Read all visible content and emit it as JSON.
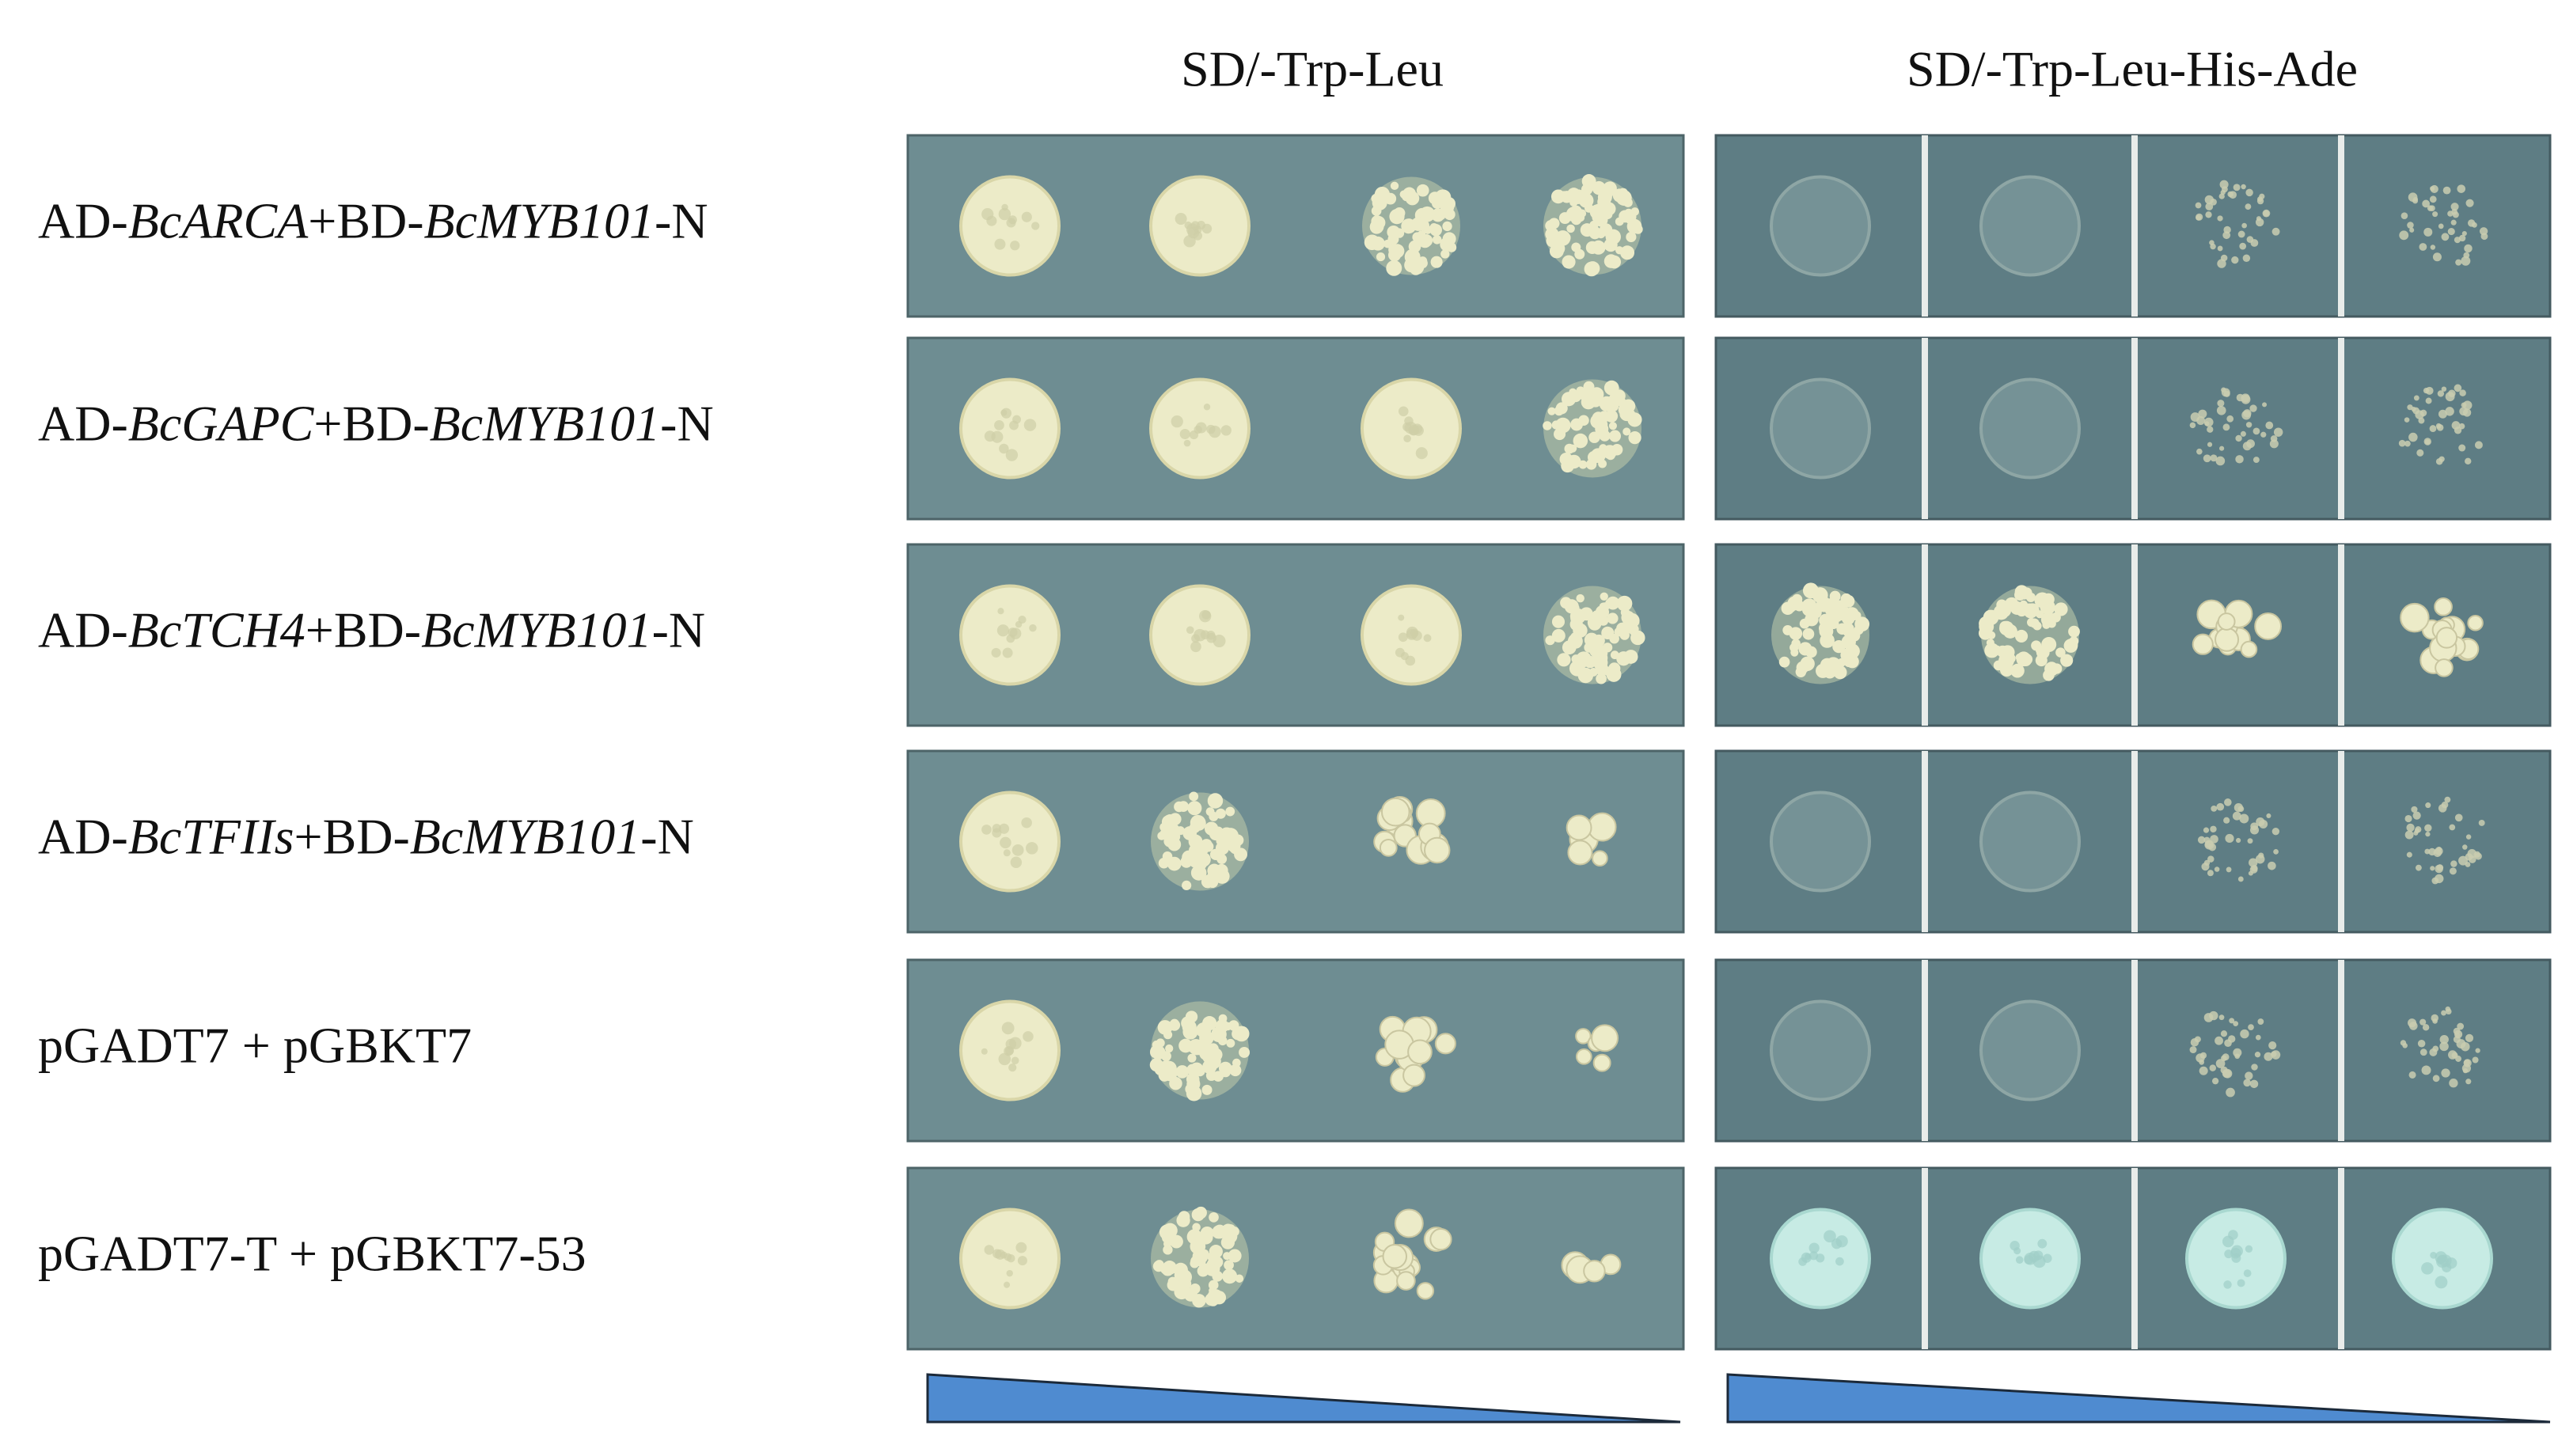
{
  "figure": {
    "columns": [
      "SD/-Trp-Leu",
      "SD/-Trp-Leu-His-Ade"
    ],
    "rows": [
      {
        "label": [
          {
            "text": "AD-",
            "italic": false
          },
          {
            "text": "BcARCA",
            "italic": true
          },
          {
            "text": "+BD-",
            "italic": false
          },
          {
            "text": "BcMYB101",
            "italic": true
          },
          {
            "text": "-N",
            "italic": false
          }
        ]
      },
      {
        "label": [
          {
            "text": "AD-",
            "italic": false
          },
          {
            "text": "BcGAPC",
            "italic": true
          },
          {
            "text": "+BD-",
            "italic": false
          },
          {
            "text": "BcMYB101",
            "italic": true
          },
          {
            "text": "-N",
            "italic": false
          }
        ]
      },
      {
        "label": [
          {
            "text": "AD-",
            "italic": false
          },
          {
            "text": "BcTCH4",
            "italic": true
          },
          {
            "text": "+BD-",
            "italic": false
          },
          {
            "text": "BcMYB101",
            "italic": true
          },
          {
            "text": "-N",
            "italic": false
          }
        ]
      },
      {
        "label": [
          {
            "text": "AD-",
            "italic": false
          },
          {
            "text": "BcTFIIs",
            "italic": true
          },
          {
            "text": "+BD-",
            "italic": false
          },
          {
            "text": "BcMYB101",
            "italic": true
          },
          {
            "text": "-N",
            "italic": false
          }
        ]
      },
      {
        "label": [
          {
            "text": "pGADT7 + pGBKT7",
            "italic": false
          }
        ]
      },
      {
        "label": [
          {
            "text": "pGADT7-T + pGBKT7-53",
            "italic": false
          }
        ]
      }
    ]
  }
}
